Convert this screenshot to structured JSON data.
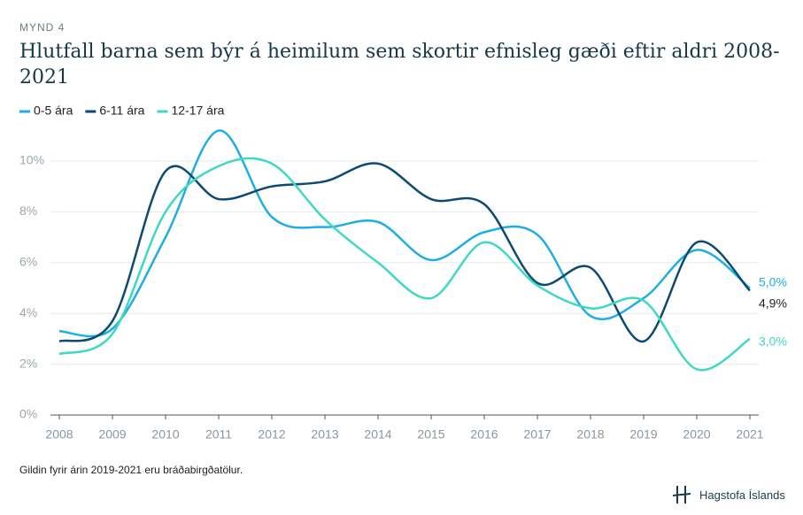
{
  "chart_data": {
    "type": "line",
    "kicker": "MYND 4",
    "title": "Hlutfall barna sem býr á heimilum sem skortir efnisleg gæði eftir aldri 2008-2021",
    "categories": [
      "2008",
      "2009",
      "2010",
      "2011",
      "2012",
      "2013",
      "2014",
      "2015",
      "2016",
      "2017",
      "2018",
      "2019",
      "2020",
      "2021"
    ],
    "series": [
      {
        "name": "0-5 ára",
        "color": "#1eaee6",
        "values": [
          3.3,
          3.4,
          7.0,
          11.2,
          7.8,
          7.4,
          7.6,
          6.1,
          7.2,
          7.1,
          3.9,
          4.6,
          6.5,
          5.0
        ],
        "value_labels": [
          null,
          null,
          null,
          null,
          null,
          null,
          null,
          null,
          null,
          null,
          null,
          null,
          null,
          "5,0%"
        ]
      },
      {
        "name": "6-11 ára",
        "color": "#0d4a73",
        "values": [
          2.9,
          3.7,
          9.6,
          8.5,
          9.0,
          9.2,
          9.9,
          8.5,
          8.3,
          5.2,
          5.8,
          2.9,
          6.8,
          4.9
        ],
        "value_labels": [
          null,
          null,
          null,
          null,
          null,
          null,
          null,
          null,
          null,
          null,
          null,
          null,
          null,
          "4,9%"
        ]
      },
      {
        "name": "12-17 ára",
        "color": "#3ed8c3",
        "values": [
          2.4,
          3.2,
          8.0,
          9.8,
          9.9,
          7.7,
          6.0,
          4.6,
          6.8,
          5.1,
          4.2,
          4.5,
          1.8,
          3.0
        ],
        "value_labels": [
          null,
          null,
          null,
          null,
          null,
          null,
          null,
          null,
          null,
          null,
          null,
          null,
          null,
          "3,0%"
        ]
      }
    ],
    "ylim": [
      0,
      10
    ],
    "yticks": [
      {
        "value": 0,
        "label": "0%"
      },
      {
        "value": 2,
        "label": "2%"
      },
      {
        "value": 4,
        "label": "4%"
      },
      {
        "value": 6,
        "label": "6%"
      },
      {
        "value": 8,
        "label": "8%"
      },
      {
        "value": 10,
        "label": "10%"
      }
    ],
    "grid": true,
    "footnote": "Gildin fyrir árin 2019-2021 eru bráðabirgðatölur.",
    "source": "Hagstofa Íslands"
  }
}
